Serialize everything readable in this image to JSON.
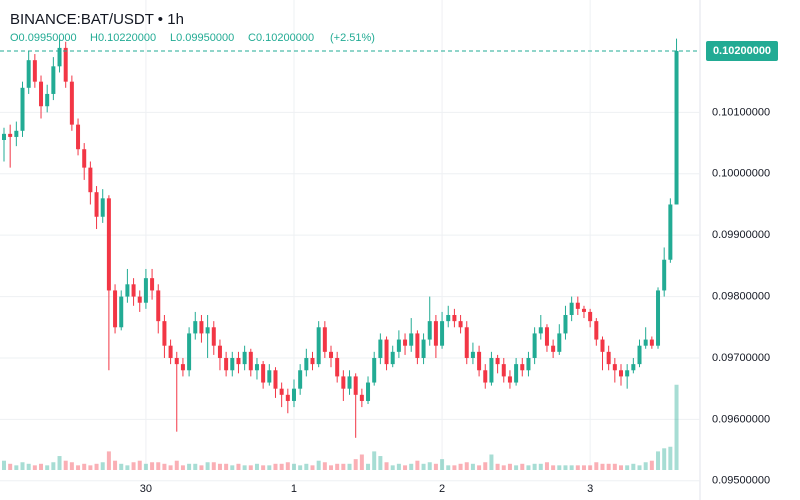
{
  "chart_data": {
    "type": "candlestick",
    "title": "BINANCE:BAT/USDT • 1h",
    "ohlc_labels": [
      "O0.09950000",
      "H0.10220000",
      "L0.09950000",
      "C0.10200000",
      "(+2.51%)"
    ],
    "last_price_label": "0.10200000",
    "x": [
      null,
      null,
      null,
      null,
      null,
      null,
      null,
      null,
      null,
      null,
      null,
      null,
      null,
      null,
      null,
      null,
      null,
      null,
      null,
      null,
      null,
      null,
      null,
      "30",
      null,
      null,
      null,
      null,
      null,
      null,
      null,
      null,
      null,
      null,
      null,
      null,
      null,
      null,
      null,
      null,
      null,
      null,
      null,
      null,
      null,
      null,
      null,
      "1",
      null,
      null,
      null,
      null,
      null,
      null,
      null,
      null,
      null,
      null,
      null,
      null,
      null,
      null,
      null,
      null,
      null,
      null,
      null,
      null,
      null,
      null,
      null,
      "2",
      null,
      null,
      null,
      null,
      null,
      null,
      null,
      null,
      null,
      null,
      null,
      null,
      null,
      null,
      null,
      null,
      null,
      null,
      null,
      null,
      null,
      null,
      null,
      "3",
      null,
      null,
      null,
      null,
      null,
      null,
      null,
      null,
      null,
      null,
      null,
      null,
      null,
      null
    ],
    "open": [
      0.10055,
      0.10065,
      0.1006,
      0.1007,
      0.1014,
      0.10185,
      0.1015,
      0.1011,
      0.1013,
      0.10175,
      0.10205,
      0.1015,
      0.1008,
      0.1004,
      0.1001,
      0.0997,
      0.0993,
      0.0996,
      0.0981,
      0.0975,
      0.098,
      0.0982,
      0.098,
      0.0979,
      0.0983,
      0.0981,
      0.0976,
      0.0972,
      0.097,
      0.0969,
      0.0968,
      0.0974,
      0.0976,
      0.0974,
      0.0975,
      0.0972,
      0.097,
      0.0968,
      0.097,
      0.0969,
      0.0971,
      0.0968,
      0.0969,
      0.0966,
      0.0968,
      0.0965,
      0.0964,
      0.0963,
      0.0965,
      0.0968,
      0.097,
      0.0969,
      0.0975,
      0.0971,
      0.097,
      0.0967,
      0.0965,
      0.0967,
      0.0964,
      0.0963,
      0.0966,
      0.097,
      0.0973,
      0.0969,
      0.0971,
      0.0973,
      0.0972,
      0.0974,
      0.097,
      0.0973,
      0.0976,
      0.0972,
      0.0976,
      0.0977,
      0.0976,
      0.0975,
      0.097,
      0.0971,
      0.0968,
      0.0966,
      0.097,
      0.0969,
      0.0967,
      0.0966,
      0.0969,
      0.0968,
      0.097,
      0.0974,
      0.0975,
      0.0972,
      0.0971,
      0.0974,
      0.0977,
      0.0979,
      0.0978,
      0.09775,
      0.0976,
      0.0973,
      0.0971,
      0.0969,
      0.0968,
      0.0967,
      0.0968,
      0.0969,
      0.0972,
      0.0973,
      0.0972,
      0.0981,
      0.0986,
      0.0995
    ],
    "high": [
      0.10075,
      0.1008,
      0.10085,
      0.1015,
      0.102,
      0.10195,
      0.1016,
      0.10145,
      0.1019,
      0.1022,
      0.10215,
      0.1016,
      0.1009,
      0.1005,
      0.1002,
      0.0998,
      0.09975,
      0.09965,
      0.0982,
      0.0981,
      0.09845,
      0.0983,
      0.0981,
      0.09845,
      0.09845,
      0.0982,
      0.0977,
      0.0973,
      0.0971,
      0.097,
      0.0975,
      0.09775,
      0.0977,
      0.0977,
      0.0976,
      0.0973,
      0.0971,
      0.0971,
      0.0971,
      0.0972,
      0.09715,
      0.097,
      0.09695,
      0.0969,
      0.09685,
      0.0966,
      0.0965,
      0.09665,
      0.0969,
      0.09715,
      0.0971,
      0.0976,
      0.0976,
      0.0972,
      0.0971,
      0.0968,
      0.0968,
      0.09675,
      0.0965,
      0.0967,
      0.0971,
      0.0974,
      0.09735,
      0.0972,
      0.09745,
      0.0974,
      0.09765,
      0.09745,
      0.0974,
      0.098,
      0.0977,
      0.09775,
      0.09785,
      0.0978,
      0.0977,
      0.0976,
      0.09725,
      0.0972,
      0.0969,
      0.0971,
      0.09705,
      0.097,
      0.0968,
      0.097,
      0.097,
      0.0971,
      0.0975,
      0.0977,
      0.09755,
      0.0973,
      0.09755,
      0.09785,
      0.098,
      0.098,
      0.09785,
      0.0978,
      0.09765,
      0.09735,
      0.0972,
      0.097,
      0.0969,
      0.0969,
      0.097,
      0.0973,
      0.0975,
      0.09735,
      0.09815,
      0.0988,
      0.0996,
      0.1022
    ],
    "low": [
      0.1002,
      0.1001,
      0.10045,
      0.1006,
      0.1013,
      0.1014,
      0.1009,
      0.101,
      0.1012,
      0.10165,
      0.1014,
      0.1007,
      0.1003,
      0.0999,
      0.0995,
      0.0991,
      0.0992,
      0.0968,
      0.0974,
      0.09745,
      0.0979,
      0.09785,
      0.09775,
      0.0978,
      0.09795,
      0.0974,
      0.097,
      0.0969,
      0.0958,
      0.0967,
      0.0967,
      0.0973,
      0.09725,
      0.097,
      0.09705,
      0.0968,
      0.0967,
      0.0967,
      0.09675,
      0.0968,
      0.0967,
      0.09665,
      0.0965,
      0.09655,
      0.09635,
      0.0962,
      0.0961,
      0.0962,
      0.0964,
      0.0967,
      0.0968,
      0.09685,
      0.097,
      0.09685,
      0.0966,
      0.0963,
      0.0964,
      0.0957,
      0.0962,
      0.09625,
      0.09655,
      0.0969,
      0.0968,
      0.09685,
      0.097,
      0.09705,
      0.0971,
      0.0969,
      0.0969,
      0.0972,
      0.097,
      0.09715,
      0.0975,
      0.0975,
      0.0974,
      0.0969,
      0.0969,
      0.0967,
      0.0965,
      0.09655,
      0.09675,
      0.0966,
      0.0965,
      0.09655,
      0.0967,
      0.0967,
      0.0969,
      0.0973,
      0.0971,
      0.097,
      0.09705,
      0.0973,
      0.0976,
      0.0977,
      0.09765,
      0.0975,
      0.0972,
      0.0968,
      0.0968,
      0.0966,
      0.09655,
      0.0965,
      0.09675,
      0.09685,
      0.09715,
      0.09715,
      0.09715,
      0.098,
      0.09855,
      0.0995
    ],
    "close": [
      0.10065,
      0.1006,
      0.1007,
      0.1014,
      0.10185,
      0.1015,
      0.1011,
      0.1013,
      0.10175,
      0.10205,
      0.1015,
      0.1008,
      0.1004,
      0.1001,
      0.0997,
      0.0993,
      0.0996,
      0.0981,
      0.0975,
      0.098,
      0.0982,
      0.098,
      0.0979,
      0.0983,
      0.0981,
      0.0976,
      0.0972,
      0.097,
      0.0969,
      0.0968,
      0.0974,
      0.0976,
      0.0974,
      0.0975,
      0.0972,
      0.097,
      0.0968,
      0.097,
      0.0969,
      0.0971,
      0.0968,
      0.0969,
      0.0966,
      0.0968,
      0.0965,
      0.0964,
      0.0963,
      0.0965,
      0.0968,
      0.097,
      0.0969,
      0.0975,
      0.0971,
      0.097,
      0.0967,
      0.0965,
      0.0967,
      0.0964,
      0.0963,
      0.0966,
      0.097,
      0.0973,
      0.0969,
      0.0971,
      0.0973,
      0.0972,
      0.0974,
      0.097,
      0.0973,
      0.0976,
      0.0972,
      0.0976,
      0.0977,
      0.0976,
      0.0975,
      0.097,
      0.0971,
      0.0968,
      0.0966,
      0.097,
      0.0969,
      0.0967,
      0.0966,
      0.0969,
      0.0968,
      0.097,
      0.0974,
      0.0975,
      0.0972,
      0.0971,
      0.0974,
      0.0977,
      0.0979,
      0.0978,
      0.09775,
      0.0976,
      0.0973,
      0.0971,
      0.0969,
      0.0968,
      0.0967,
      0.0968,
      0.0969,
      0.0972,
      0.0973,
      0.0972,
      0.0981,
      0.0986,
      0.0995,
      0.102
    ],
    "volume": [
      6,
      4,
      3,
      5,
      4,
      3,
      4,
      3,
      5,
      9,
      6,
      5,
      3,
      4,
      3,
      4,
      5,
      12,
      6,
      4,
      3,
      5,
      6,
      4,
      5,
      5,
      4,
      3,
      6,
      3,
      4,
      4,
      3,
      5,
      5,
      4,
      4,
      3,
      4,
      3,
      3,
      4,
      3,
      3,
      4,
      4,
      5,
      4,
      3,
      4,
      3,
      6,
      5,
      3,
      4,
      4,
      4,
      7,
      10,
      4,
      12,
      9,
      5,
      3,
      4,
      3,
      4,
      6,
      4,
      5,
      4,
      7,
      3,
      3,
      4,
      5,
      4,
      3,
      5,
      10,
      4,
      3,
      4,
      3,
      4,
      3,
      4,
      4,
      5,
      3,
      3,
      3,
      3,
      3,
      3,
      3,
      5,
      4,
      4,
      4,
      3,
      3,
      4,
      3,
      5,
      6,
      12,
      14,
      15,
      55
    ],
    "up_color": "#22ab94",
    "down_color": "#f23645",
    "ylim": [
      0.09485,
      0.10283
    ],
    "yticks": [
      {
        "value": 0.095,
        "label": "0.09500000"
      },
      {
        "value": 0.096,
        "label": "0.09600000"
      },
      {
        "value": 0.097,
        "label": "0.09700000"
      },
      {
        "value": 0.098,
        "label": "0.09800000"
      },
      {
        "value": 0.099,
        "label": "0.09900000"
      },
      {
        "value": 0.1,
        "label": "0.10000000"
      },
      {
        "value": 0.101,
        "label": "0.10100000"
      }
    ],
    "grid": true
  }
}
